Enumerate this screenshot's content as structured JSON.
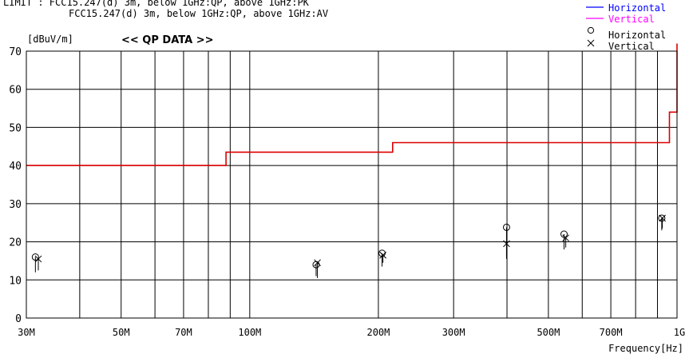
{
  "header": {
    "limit_line1": "LIMIT : FCC15.247(d) 3m, below 1GHz:QP, above 1GHz:PK",
    "limit_line2": "FCC15.247(d) 3m, below 1GHz:QP, above 1GHz:AV"
  },
  "legend": {
    "items": [
      {
        "label": "Horizontal",
        "kind": "line",
        "color": "#0000ff"
      },
      {
        "label": "Vertical",
        "kind": "line",
        "color": "#ff00ff"
      },
      {
        "label": "Horizontal",
        "kind": "circle",
        "color": "#000000"
      },
      {
        "label": "Vertical",
        "kind": "cross",
        "color": "#000000"
      }
    ]
  },
  "chart_data": {
    "type": "scatter",
    "title": "<< QP DATA >>",
    "ylabel": "[dBuV/m]",
    "xlabel": "Frequency[Hz]",
    "x_scale": "log",
    "xlim": [
      30,
      1000
    ],
    "ylim": [
      0,
      70
    ],
    "grid": true,
    "x_ticks": [
      {
        "value": 30,
        "label": "30M"
      },
      {
        "value": 50,
        "label": "50M"
      },
      {
        "value": 70,
        "label": "70M"
      },
      {
        "value": 100,
        "label": "100M"
      },
      {
        "value": 200,
        "label": "200M"
      },
      {
        "value": 300,
        "label": "300M"
      },
      {
        "value": 500,
        "label": "500M"
      },
      {
        "value": 700,
        "label": "700M"
      },
      {
        "value": 1000,
        "label": "1G"
      }
    ],
    "x_grid_lines": [
      30,
      40,
      50,
      60,
      70,
      80,
      90,
      100,
      200,
      300,
      400,
      500,
      600,
      700,
      800,
      900,
      1000
    ],
    "y_ticks": [
      0,
      10,
      20,
      30,
      40,
      50,
      60,
      70
    ],
    "limit_line": {
      "color": "#dd0000",
      "points": [
        [
          30,
          40
        ],
        [
          88,
          40
        ],
        [
          88,
          43.5
        ],
        [
          216,
          43.5
        ],
        [
          216,
          46
        ],
        [
          960,
          46
        ],
        [
          960,
          54
        ],
        [
          1000,
          54
        ],
        [
          1000,
          72
        ]
      ]
    },
    "series": [
      {
        "name": "Horizontal",
        "marker": "circle",
        "points": [
          {
            "x": 31.5,
            "y": 16,
            "base": 12
          },
          {
            "x": 143,
            "y": 14,
            "base": 11
          },
          {
            "x": 204,
            "y": 17,
            "base": 13.5
          },
          {
            "x": 399,
            "y": 23.8,
            "base": 16
          },
          {
            "x": 544,
            "y": 22,
            "base": 18
          },
          {
            "x": 921,
            "y": 26.2,
            "base": 23
          }
        ]
      },
      {
        "name": "Vertical",
        "marker": "cross",
        "points": [
          {
            "x": 32,
            "y": 15.5,
            "base": 12.5
          },
          {
            "x": 144,
            "y": 14.5,
            "base": 10.5
          },
          {
            "x": 205,
            "y": 16.5,
            "base": 14.5
          },
          {
            "x": 399,
            "y": 19.5,
            "base": 15.5
          },
          {
            "x": 549,
            "y": 21,
            "base": 18.5
          },
          {
            "x": 924,
            "y": 26.2,
            "base": 23.5
          }
        ]
      }
    ]
  }
}
